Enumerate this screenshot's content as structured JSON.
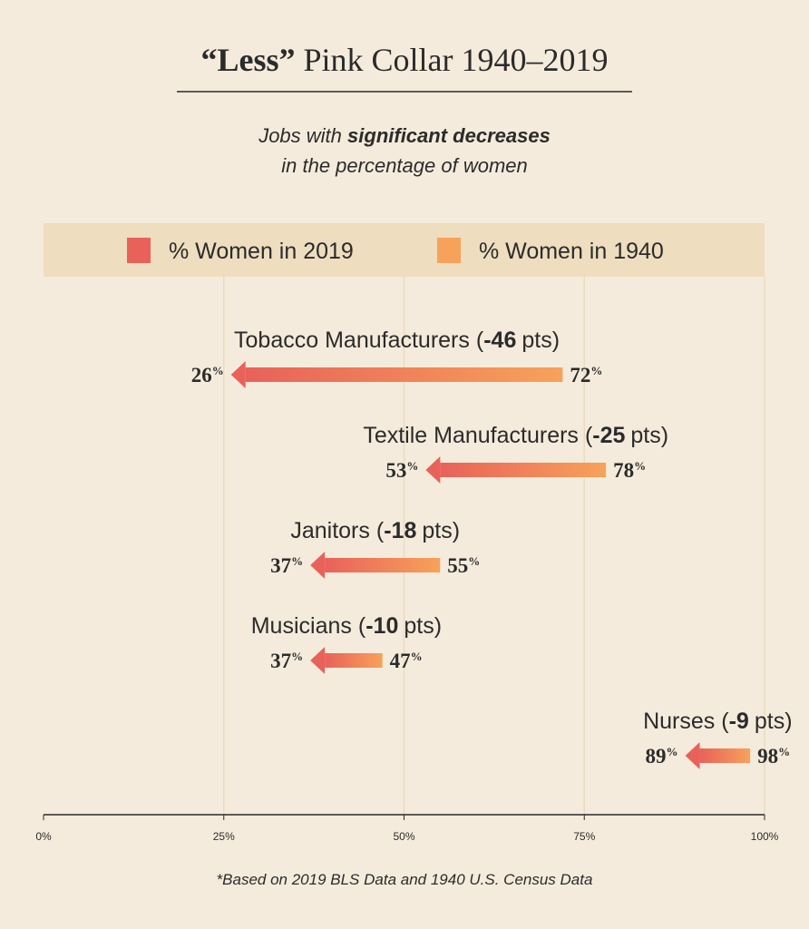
{
  "chart_data": {
    "type": "arrow",
    "title": {
      "bold": "“Less”",
      "rest": "Pink Collar 1940–2019"
    },
    "subtitle": {
      "line1_start": "Jobs with",
      "line1_bold": "significant decreases",
      "line2": "in the percentage of women"
    },
    "categories": [
      "Tobacco Manufacturers",
      "Textile Manufacturers",
      "Janitors",
      "Musicians",
      "Nurses"
    ],
    "changes": [
      -46,
      -25,
      -18,
      -10,
      -9
    ],
    "change_prefix": "(",
    "change_suffix": "pts)",
    "value_unit": "%",
    "series": [
      {
        "name": "% Women in 2019",
        "color": "#e8625a",
        "values": [
          26,
          53,
          37,
          37,
          89
        ]
      },
      {
        "name": "% Women in 1940",
        "color": "#f7a25a",
        "values": [
          72,
          78,
          55,
          47,
          98
        ]
      }
    ],
    "xlim": [
      0,
      100
    ],
    "xticks": [
      {
        "value": 0,
        "label": "0%"
      },
      {
        "value": 25,
        "label": "25%"
      },
      {
        "value": 50,
        "label": "50%"
      },
      {
        "value": 75,
        "label": "75%"
      },
      {
        "value": 100,
        "label": "100%"
      }
    ],
    "grid": true,
    "legend": "top",
    "footnote": "*Based on 2019 BLS Data and 1940 U.S. Census Data"
  }
}
